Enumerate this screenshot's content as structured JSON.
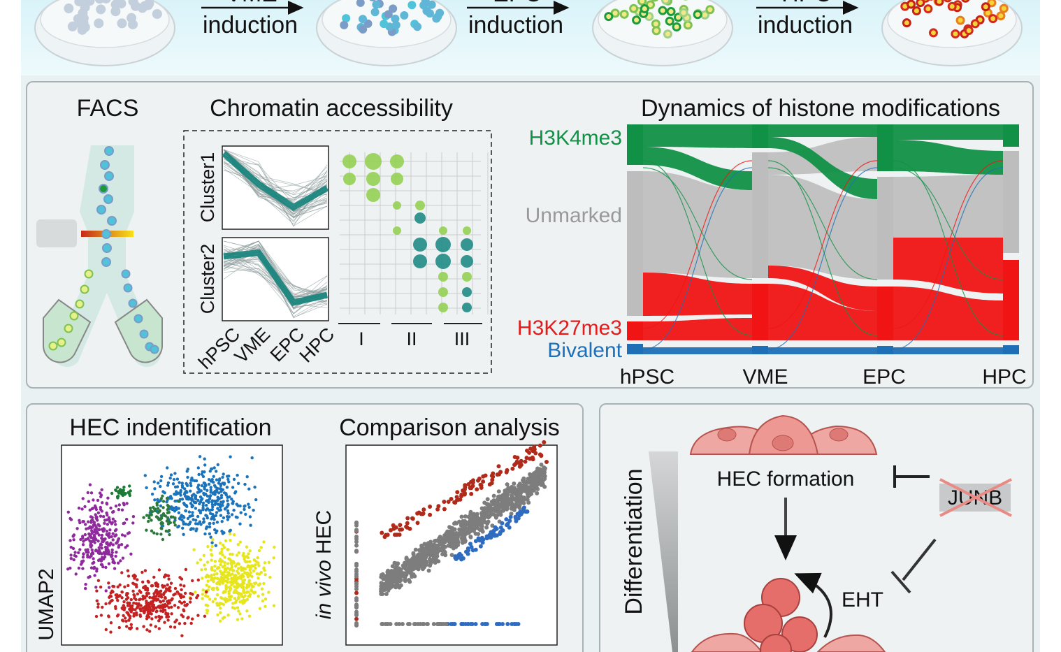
{
  "top": {
    "steps": [
      {
        "label": "VME",
        "action": "induction"
      },
      {
        "label": "EPC",
        "action": "induction"
      },
      {
        "label": "HPC",
        "action": "induction"
      }
    ]
  },
  "panel_chromatin": {
    "facs_title": "FACS",
    "title": "Chromatin accessibility",
    "clusters": [
      "Cluster1",
      "Cluster2"
    ],
    "stages": [
      "hPSC",
      "VME",
      "EPC",
      "HPC"
    ],
    "groups": [
      "I",
      "II",
      "III"
    ]
  },
  "panel_histone": {
    "title": "Dynamics of histone modifications",
    "states": [
      "H3K4me3",
      "Unmarked",
      "H3K27me3",
      "Bivalent"
    ],
    "stages": [
      "hPSC",
      "VME",
      "EPC",
      "HPC"
    ]
  },
  "panel_hec": {
    "title": "HEC indentification",
    "y_axis": "UMAP2"
  },
  "panel_comparison": {
    "title": "Comparison analysis",
    "y_axis_italic": "in vivo",
    "y_axis": "HEC"
  },
  "panel_model": {
    "gradient": "Differentiation",
    "formation": "HEC formation",
    "gene": "JUNB",
    "process": "EHT"
  }
}
